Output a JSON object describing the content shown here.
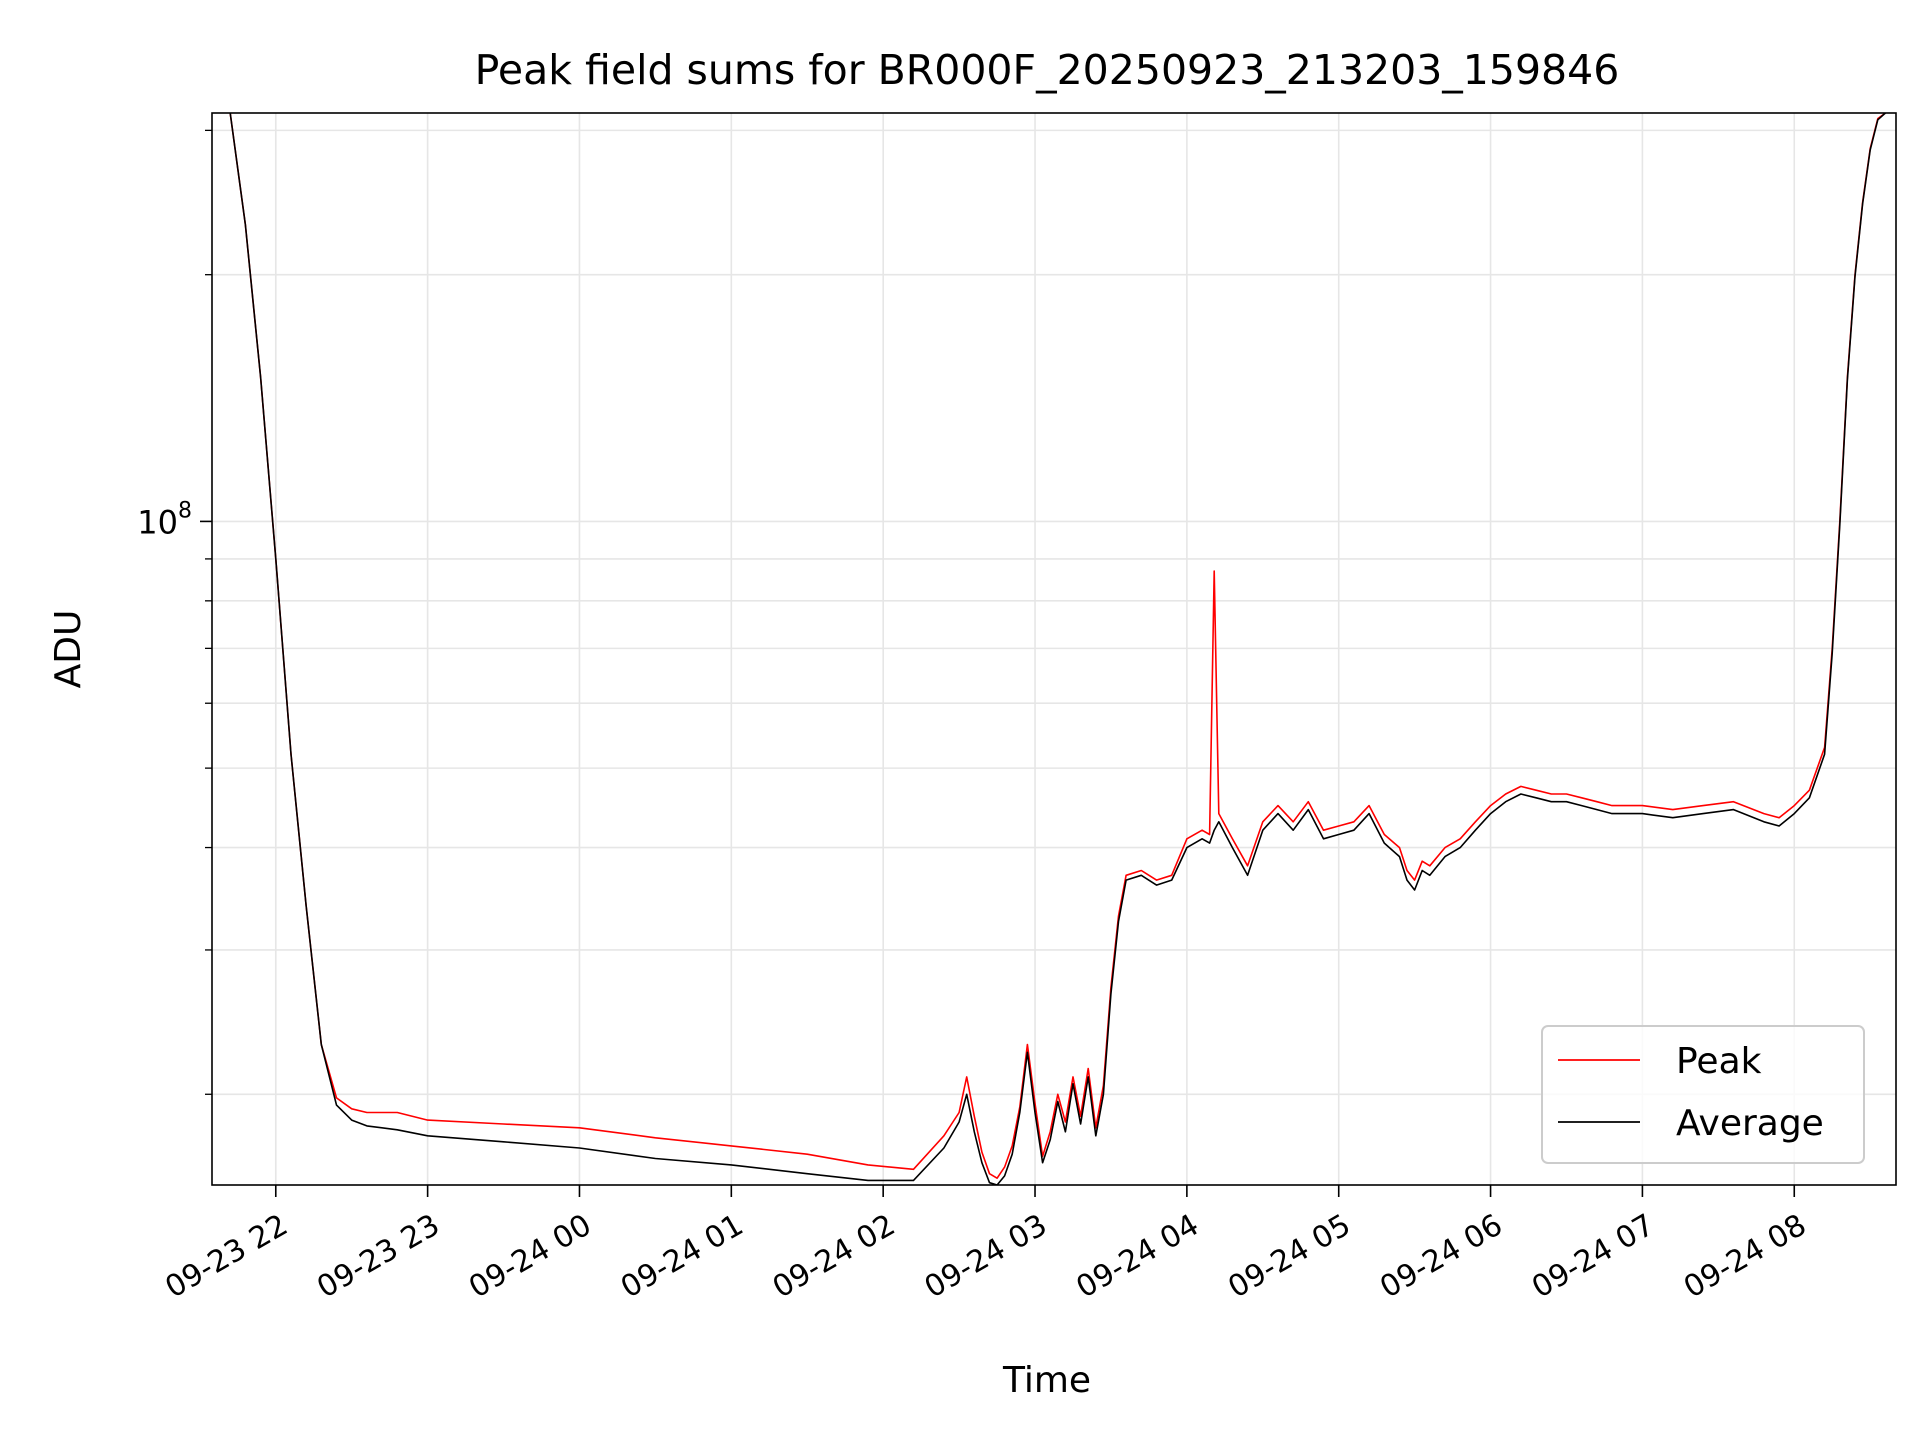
{
  "chart_data": {
    "type": "line",
    "title": "Peak field sums for BR000F_20250923_213203_159846",
    "xlabel": "Time",
    "ylabel": "ADU",
    "yscale": "log",
    "grid": true,
    "legend_position": "lower-right",
    "xlim_hours": [
      -0.42,
      10.67
    ],
    "ylim": [
      15500000,
      315000000
    ],
    "x_ticks": [
      {
        "label": "09-23 22",
        "hours": 0
      },
      {
        "label": "09-23 23",
        "hours": 1
      },
      {
        "label": "09-24 00",
        "hours": 2
      },
      {
        "label": "09-24 01",
        "hours": 3
      },
      {
        "label": "09-24 02",
        "hours": 4
      },
      {
        "label": "09-24 03",
        "hours": 5
      },
      {
        "label": "09-24 04",
        "hours": 6
      },
      {
        "label": "09-24 05",
        "hours": 7
      },
      {
        "label": "09-24 06",
        "hours": 8
      },
      {
        "label": "09-24 07",
        "hours": 9
      },
      {
        "label": "09-24 08",
        "hours": 10
      }
    ],
    "y_major_ticks": [
      {
        "label": "10",
        "exp": "8",
        "value": 100000000
      }
    ],
    "y_minor_gridlines": [
      20000000,
      30000000,
      40000000,
      50000000,
      60000000,
      70000000,
      80000000,
      90000000,
      200000000,
      300000000
    ],
    "time_reference": "hours relative to 09-23 22:00",
    "series": [
      {
        "name": "Peak",
        "color": "#ff0000",
        "points": [
          [
            -0.3,
            315000000
          ],
          [
            -0.2,
            230000000
          ],
          [
            -0.1,
            150000000
          ],
          [
            0.0,
            90000000
          ],
          [
            0.1,
            52000000
          ],
          [
            0.2,
            34000000
          ],
          [
            0.3,
            23000000
          ],
          [
            0.4,
            19800000
          ],
          [
            0.5,
            19200000
          ],
          [
            0.6,
            19000000
          ],
          [
            0.8,
            19000000
          ],
          [
            1.0,
            18600000
          ],
          [
            1.5,
            18400000
          ],
          [
            2.0,
            18200000
          ],
          [
            2.5,
            17700000
          ],
          [
            3.0,
            17300000
          ],
          [
            3.5,
            16900000
          ],
          [
            3.9,
            16400000
          ],
          [
            4.2,
            16200000
          ],
          [
            4.4,
            17800000
          ],
          [
            4.5,
            19000000
          ],
          [
            4.55,
            21000000
          ],
          [
            4.6,
            18800000
          ],
          [
            4.65,
            17000000
          ],
          [
            4.7,
            16000000
          ],
          [
            4.75,
            15800000
          ],
          [
            4.8,
            16300000
          ],
          [
            4.85,
            17300000
          ],
          [
            4.9,
            19300000
          ],
          [
            4.95,
            23000000
          ],
          [
            5.0,
            19500000
          ],
          [
            5.05,
            16800000
          ],
          [
            5.1,
            18000000
          ],
          [
            5.15,
            20000000
          ],
          [
            5.2,
            18500000
          ],
          [
            5.25,
            21000000
          ],
          [
            5.3,
            18800000
          ],
          [
            5.35,
            21500000
          ],
          [
            5.4,
            18200000
          ],
          [
            5.45,
            20500000
          ],
          [
            5.5,
            27000000
          ],
          [
            5.55,
            33000000
          ],
          [
            5.6,
            37000000
          ],
          [
            5.7,
            37500000
          ],
          [
            5.8,
            36500000
          ],
          [
            5.9,
            37000000
          ],
          [
            6.0,
            41000000
          ],
          [
            6.1,
            42000000
          ],
          [
            6.15,
            41500000
          ],
          [
            6.18,
            87000000
          ],
          [
            6.21,
            44000000
          ],
          [
            6.3,
            41000000
          ],
          [
            6.4,
            38000000
          ],
          [
            6.5,
            43000000
          ],
          [
            6.6,
            45000000
          ],
          [
            6.7,
            43000000
          ],
          [
            6.8,
            45500000
          ],
          [
            6.9,
            42000000
          ],
          [
            7.0,
            42500000
          ],
          [
            7.1,
            43000000
          ],
          [
            7.2,
            45000000
          ],
          [
            7.3,
            41500000
          ],
          [
            7.4,
            40000000
          ],
          [
            7.45,
            37500000
          ],
          [
            7.5,
            36500000
          ],
          [
            7.55,
            38500000
          ],
          [
            7.6,
            38000000
          ],
          [
            7.7,
            40000000
          ],
          [
            7.8,
            41000000
          ],
          [
            7.9,
            43000000
          ],
          [
            8.0,
            45000000
          ],
          [
            8.1,
            46500000
          ],
          [
            8.2,
            47500000
          ],
          [
            8.3,
            47000000
          ],
          [
            8.4,
            46500000
          ],
          [
            8.5,
            46500000
          ],
          [
            8.6,
            46000000
          ],
          [
            8.7,
            45500000
          ],
          [
            8.8,
            45000000
          ],
          [
            9.0,
            45000000
          ],
          [
            9.2,
            44500000
          ],
          [
            9.4,
            45000000
          ],
          [
            9.6,
            45500000
          ],
          [
            9.8,
            44000000
          ],
          [
            9.9,
            43500000
          ],
          [
            10.0,
            45000000
          ],
          [
            10.1,
            47000000
          ],
          [
            10.2,
            53000000
          ],
          [
            10.25,
            70000000
          ],
          [
            10.3,
            100000000
          ],
          [
            10.35,
            150000000
          ],
          [
            10.4,
            200000000
          ],
          [
            10.45,
            245000000
          ],
          [
            10.5,
            285000000
          ],
          [
            10.55,
            310000000
          ],
          [
            10.6,
            315000000
          ]
        ]
      },
      {
        "name": "Average",
        "color": "#000000",
        "points": [
          [
            -0.3,
            315000000
          ],
          [
            -0.2,
            230000000
          ],
          [
            -0.1,
            150000000
          ],
          [
            0.0,
            90000000
          ],
          [
            0.1,
            52000000
          ],
          [
            0.2,
            34000000
          ],
          [
            0.3,
            23000000
          ],
          [
            0.4,
            19400000
          ],
          [
            0.5,
            18600000
          ],
          [
            0.6,
            18300000
          ],
          [
            0.8,
            18100000
          ],
          [
            1.0,
            17800000
          ],
          [
            1.5,
            17500000
          ],
          [
            2.0,
            17200000
          ],
          [
            2.5,
            16700000
          ],
          [
            3.0,
            16400000
          ],
          [
            3.5,
            16000000
          ],
          [
            3.9,
            15700000
          ],
          [
            4.2,
            15700000
          ],
          [
            4.4,
            17200000
          ],
          [
            4.5,
            18500000
          ],
          [
            4.55,
            20000000
          ],
          [
            4.6,
            18000000
          ],
          [
            4.65,
            16500000
          ],
          [
            4.7,
            15600000
          ],
          [
            4.75,
            15500000
          ],
          [
            4.8,
            15900000
          ],
          [
            4.85,
            16900000
          ],
          [
            4.9,
            19000000
          ],
          [
            4.95,
            22500000
          ],
          [
            5.0,
            19000000
          ],
          [
            5.05,
            16500000
          ],
          [
            5.1,
            17600000
          ],
          [
            5.15,
            19600000
          ],
          [
            5.2,
            18000000
          ],
          [
            5.25,
            20600000
          ],
          [
            5.3,
            18400000
          ],
          [
            5.35,
            21000000
          ],
          [
            5.4,
            17800000
          ],
          [
            5.45,
            20000000
          ],
          [
            5.5,
            26500000
          ],
          [
            5.55,
            32500000
          ],
          [
            5.6,
            36500000
          ],
          [
            5.7,
            37000000
          ],
          [
            5.8,
            36000000
          ],
          [
            5.9,
            36500000
          ],
          [
            6.0,
            40000000
          ],
          [
            6.1,
            41000000
          ],
          [
            6.15,
            40500000
          ],
          [
            6.18,
            42000000
          ],
          [
            6.21,
            43000000
          ],
          [
            6.3,
            40000000
          ],
          [
            6.4,
            37000000
          ],
          [
            6.5,
            42000000
          ],
          [
            6.6,
            44000000
          ],
          [
            6.7,
            42000000
          ],
          [
            6.8,
            44500000
          ],
          [
            6.9,
            41000000
          ],
          [
            7.0,
            41500000
          ],
          [
            7.1,
            42000000
          ],
          [
            7.2,
            44000000
          ],
          [
            7.3,
            40500000
          ],
          [
            7.4,
            39000000
          ],
          [
            7.45,
            36500000
          ],
          [
            7.5,
            35500000
          ],
          [
            7.55,
            37500000
          ],
          [
            7.6,
            37000000
          ],
          [
            7.7,
            39000000
          ],
          [
            7.8,
            40000000
          ],
          [
            7.9,
            42000000
          ],
          [
            8.0,
            44000000
          ],
          [
            8.1,
            45500000
          ],
          [
            8.2,
            46500000
          ],
          [
            8.3,
            46000000
          ],
          [
            8.4,
            45500000
          ],
          [
            8.5,
            45500000
          ],
          [
            8.6,
            45000000
          ],
          [
            8.7,
            44500000
          ],
          [
            8.8,
            44000000
          ],
          [
            9.0,
            44000000
          ],
          [
            9.2,
            43500000
          ],
          [
            9.4,
            44000000
          ],
          [
            9.6,
            44500000
          ],
          [
            9.8,
            43000000
          ],
          [
            9.9,
            42500000
          ],
          [
            10.0,
            44000000
          ],
          [
            10.1,
            46000000
          ],
          [
            10.2,
            52000000
          ],
          [
            10.25,
            69000000
          ],
          [
            10.3,
            99000000
          ],
          [
            10.35,
            149000000
          ],
          [
            10.4,
            199000000
          ],
          [
            10.45,
            244000000
          ],
          [
            10.5,
            284000000
          ],
          [
            10.55,
            309000000
          ],
          [
            10.6,
            315000000
          ]
        ]
      }
    ]
  }
}
